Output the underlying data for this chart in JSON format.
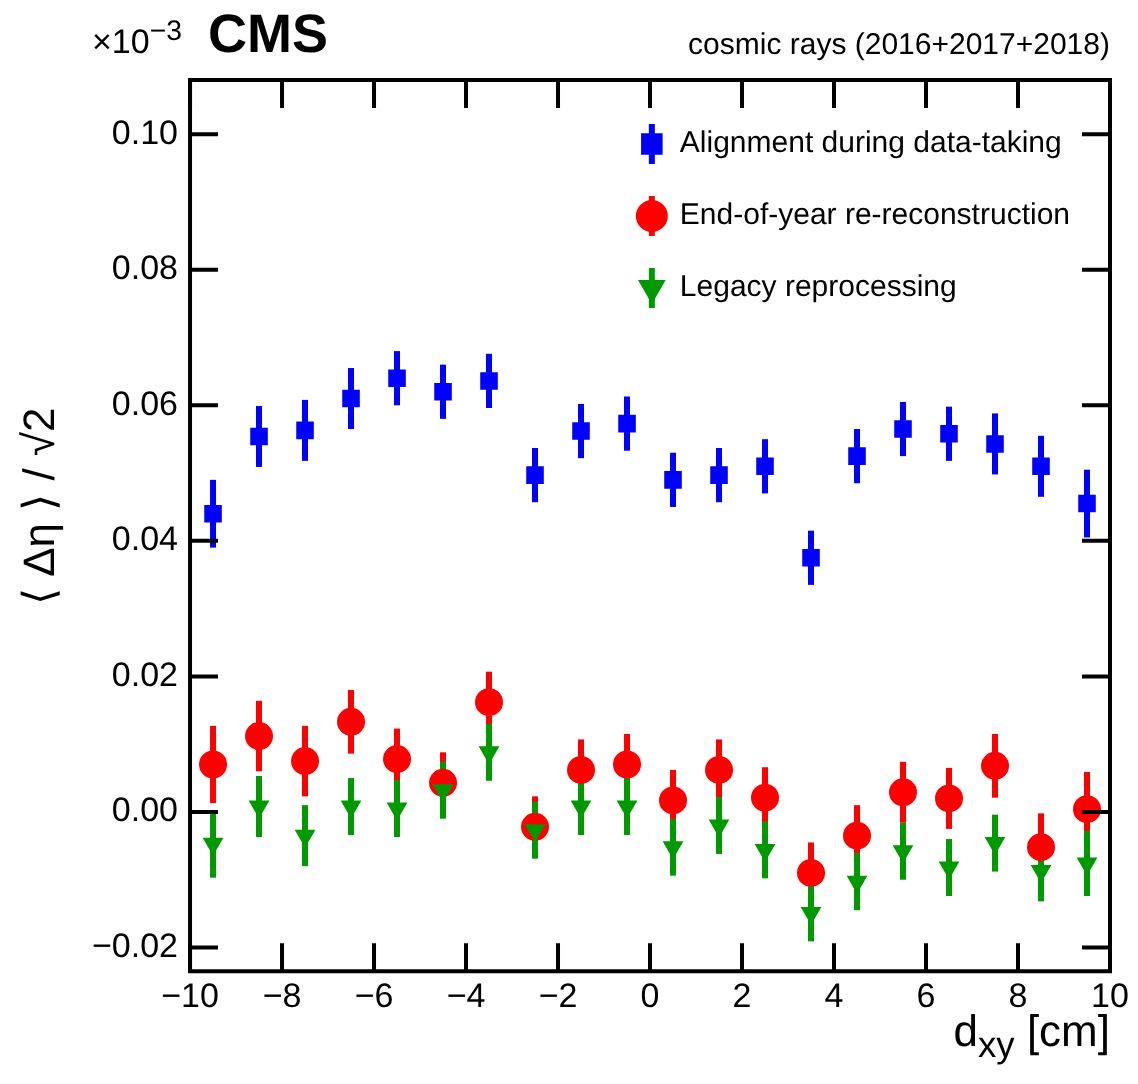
{
  "chart_data": {
    "type": "scatter",
    "title": "CMS",
    "subtitle": "cosmic rays (2016+2017+2018)",
    "xlabel": "d$_{xy}$ [cm]",
    "ylabel": "⟨ Δη ⟩ / √2",
    "annotations": [
      "×10$^{−3}$"
    ],
    "x": [
      -9.5,
      -8.5,
      -7.5,
      -6.5,
      -5.5,
      -4.5,
      -3.5,
      -2.5,
      -1.5,
      -0.5,
      0.5,
      1.5,
      2.5,
      3.5,
      4.5,
      5.5,
      6.5,
      7.5,
      8.5,
      9.5
    ],
    "series": [
      {
        "name": "Alignment during data-taking",
        "color": "#0000ff",
        "marker": "square",
        "values": [
          0.044,
          0.0554,
          0.0563,
          0.061,
          0.064,
          0.062,
          0.0636,
          0.0497,
          0.0562,
          0.0573,
          0.049,
          0.0497,
          0.051,
          0.0375,
          0.0525,
          0.0565,
          0.0558,
          0.0543,
          0.051,
          0.0455
        ],
        "errors": [
          0.005,
          0.0045,
          0.0045,
          0.0045,
          0.004,
          0.004,
          0.004,
          0.004,
          0.004,
          0.004,
          0.004,
          0.004,
          0.004,
          0.004,
          0.004,
          0.004,
          0.004,
          0.0045,
          0.0045,
          0.005
        ]
      },
      {
        "name": "End-of-year re-reconstruction",
        "color": "#ff0000",
        "marker": "circle",
        "values": [
          0.007,
          0.0112,
          0.0075,
          0.0133,
          0.0078,
          0.0043,
          0.0162,
          -0.0022,
          0.0062,
          0.007,
          0.0017,
          0.0062,
          0.0021,
          -0.009,
          -0.0035,
          0.0029,
          0.002,
          0.0068,
          -0.0052,
          0.0004
        ],
        "errors": [
          0.0057,
          0.0052,
          0.0052,
          0.0047,
          0.0045,
          0.0045,
          0.0045,
          0.0045,
          0.0045,
          0.0045,
          0.0045,
          0.0045,
          0.0045,
          0.0045,
          0.0045,
          0.0045,
          0.0045,
          0.0047,
          0.005,
          0.0055
        ]
      },
      {
        "name": "Legacy reprocessing",
        "color": "#009900",
        "marker": "triangle",
        "values": [
          -0.0047,
          0.0008,
          -0.0035,
          0.0008,
          0.0005,
          0.0032,
          0.0088,
          -0.0027,
          0.0008,
          0.0008,
          -0.0052,
          -0.002,
          -0.0056,
          -0.0149,
          -0.0103,
          -0.0058,
          -0.0082,
          -0.0046,
          -0.0087,
          -0.0076
        ],
        "errors": [
          0.005,
          0.0045,
          0.0045,
          0.0042,
          0.0042,
          0.0042,
          0.0042,
          0.0042,
          0.0042,
          0.0042,
          0.0042,
          0.0042,
          0.0042,
          0.0042,
          0.0042,
          0.0042,
          0.0042,
          0.0042,
          0.0045,
          0.0048
        ]
      }
    ],
    "xlim": [
      -10,
      10
    ],
    "xticks": [
      {
        "value": -10,
        "label": "−10"
      },
      {
        "value": -8,
        "label": "−8"
      },
      {
        "value": -6,
        "label": "−6"
      },
      {
        "value": -4,
        "label": "−4"
      },
      {
        "value": -2,
        "label": "−2"
      },
      0,
      2,
      4,
      6,
      8,
      10
    ],
    "ylim": [
      -0.0235,
      0.108
    ],
    "yticks": [
      {
        "value": -0.02,
        "label": "−0.02"
      },
      {
        "value": 0,
        "label": "0.00"
      },
      {
        "value": 0.02,
        "label": "0.02"
      },
      {
        "value": 0.04,
        "label": "0.04"
      },
      {
        "value": 0.06,
        "label": "0.06"
      },
      {
        "value": 0.08,
        "label": "0.08"
      },
      {
        "value": 0.1,
        "label": "0.10"
      }
    ],
    "legend": "top right",
    "grid": false
  }
}
